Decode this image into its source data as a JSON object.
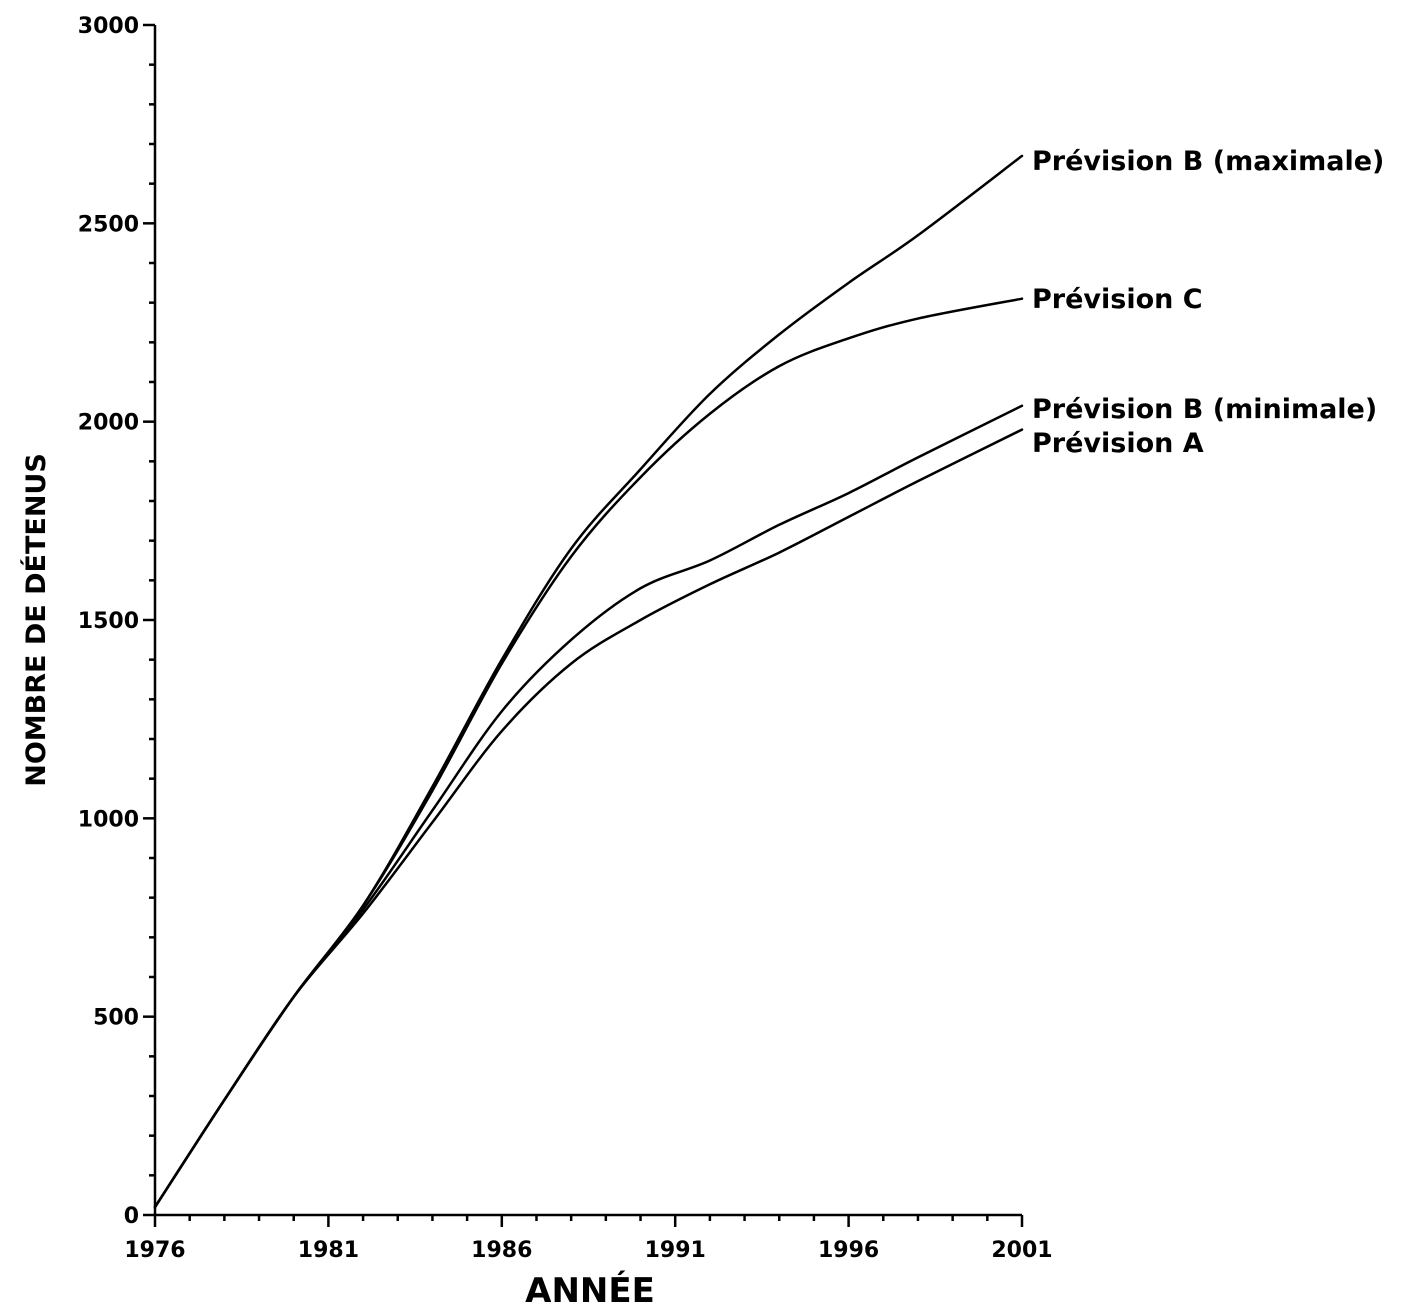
{
  "chart_data": {
    "type": "line",
    "xlabel": "ANNÉE",
    "ylabel": "NOMBRE DE DÉTENUS",
    "xlim": [
      1976,
      2001
    ],
    "ylim": [
      0,
      3000
    ],
    "x_ticks": [
      1976,
      1981,
      1986,
      1991,
      1996,
      2001
    ],
    "y_ticks": [
      0,
      500,
      1000,
      1500,
      2000,
      2500,
      3000
    ],
    "grid": false,
    "series": [
      {
        "name": "Prévision B (maximale)",
        "x": [
          1976,
          1978,
          1980,
          1982,
          1984,
          1986,
          1988,
          1990,
          1992,
          1994,
          1996,
          1998,
          2001
        ],
        "y": [
          20,
          290,
          550,
          780,
          1080,
          1400,
          1680,
          1880,
          2070,
          2220,
          2350,
          2470,
          2670
        ]
      },
      {
        "name": "Prévision C",
        "x": [
          1976,
          1978,
          1980,
          1982,
          1984,
          1986,
          1988,
          1990,
          1992,
          1994,
          1996,
          1998,
          2001
        ],
        "y": [
          20,
          290,
          550,
          780,
          1070,
          1390,
          1660,
          1860,
          2020,
          2140,
          2210,
          2260,
          2310
        ]
      },
      {
        "name": "Prévision B (minimale)",
        "x": [
          1976,
          1978,
          1980,
          1982,
          1984,
          1986,
          1988,
          1990,
          1992,
          1994,
          1996,
          1998,
          2001
        ],
        "y": [
          20,
          290,
          550,
          770,
          1020,
          1270,
          1450,
          1580,
          1650,
          1740,
          1820,
          1910,
          2040
        ]
      },
      {
        "name": "Prévision A",
        "x": [
          1976,
          1978,
          1980,
          1982,
          1984,
          1986,
          1988,
          1990,
          1992,
          1994,
          1996,
          1998,
          2001
        ],
        "y": [
          20,
          290,
          550,
          760,
          990,
          1220,
          1390,
          1500,
          1590,
          1670,
          1760,
          1850,
          1980
        ]
      }
    ]
  }
}
